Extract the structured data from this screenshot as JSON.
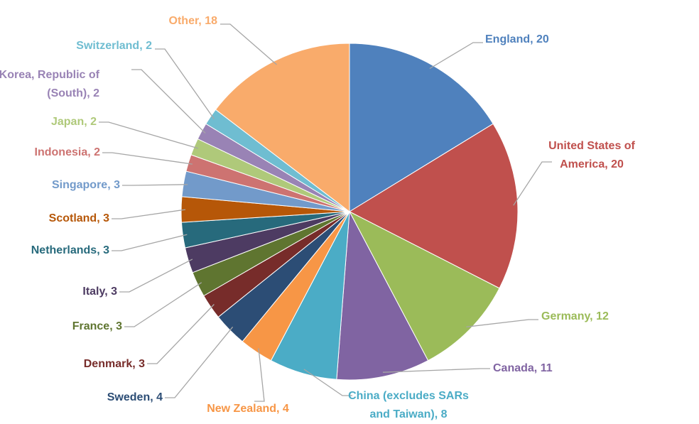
{
  "chart_data": {
    "type": "pie",
    "title": "",
    "start_angle_deg": 0,
    "direction": "clockwise",
    "series": [
      {
        "name": "England",
        "label": [
          "England, 20"
        ],
        "value": 20,
        "color": "#4F81BD"
      },
      {
        "name": "United States of America",
        "label": [
          "United States of",
          "America, 20"
        ],
        "value": 20,
        "color": "#C0504D"
      },
      {
        "name": "Germany",
        "label": [
          "Germany, 12"
        ],
        "value": 12,
        "color": "#9BBB59"
      },
      {
        "name": "Canada",
        "label": [
          "Canada, 11"
        ],
        "value": 11,
        "color": "#8064A2"
      },
      {
        "name": "China (excludes SARs and Taiwan)",
        "label": [
          "China (excludes SARs",
          "and Taiwan), 8"
        ],
        "value": 8,
        "color": "#4BACC6"
      },
      {
        "name": "New Zealand",
        "label": [
          "New Zealand, 4"
        ],
        "value": 4,
        "color": "#F79646"
      },
      {
        "name": "Sweden",
        "label": [
          "Sweden, 4"
        ],
        "value": 4,
        "color": "#2C4D75"
      },
      {
        "name": "Denmark",
        "label": [
          "Denmark, 3"
        ],
        "value": 3,
        "color": "#772C2A"
      },
      {
        "name": "France",
        "label": [
          "France, 3"
        ],
        "value": 3,
        "color": "#5F7530"
      },
      {
        "name": "Italy",
        "label": [
          "Italy, 3"
        ],
        "value": 3,
        "color": "#4D3B62"
      },
      {
        "name": "Netherlands",
        "label": [
          "Netherlands, 3"
        ],
        "value": 3,
        "color": "#276A7C"
      },
      {
        "name": "Scotland",
        "label": [
          "Scotland, 3"
        ],
        "value": 3,
        "color": "#B65708"
      },
      {
        "name": "Singapore",
        "label": [
          "Singapore, 3"
        ],
        "value": 3,
        "color": "#729ACA"
      },
      {
        "name": "Indonesia",
        "label": [
          "Indonesia, 2"
        ],
        "value": 2,
        "color": "#CD7371"
      },
      {
        "name": "Japan",
        "label": [
          "Japan, 2"
        ],
        "value": 2,
        "color": "#AFC97A"
      },
      {
        "name": "Korea, Republic of (South)",
        "label": [
          "Korea, Republic of",
          "(South), 2"
        ],
        "value": 2,
        "color": "#9983B5"
      },
      {
        "name": "Switzerland",
        "label": [
          "Switzerland, 2"
        ],
        "value": 2,
        "color": "#6FBDD1"
      },
      {
        "name": "Other",
        "label": [
          "Other, 18"
        ],
        "value": 18,
        "color": "#F9AB6B"
      }
    ]
  }
}
